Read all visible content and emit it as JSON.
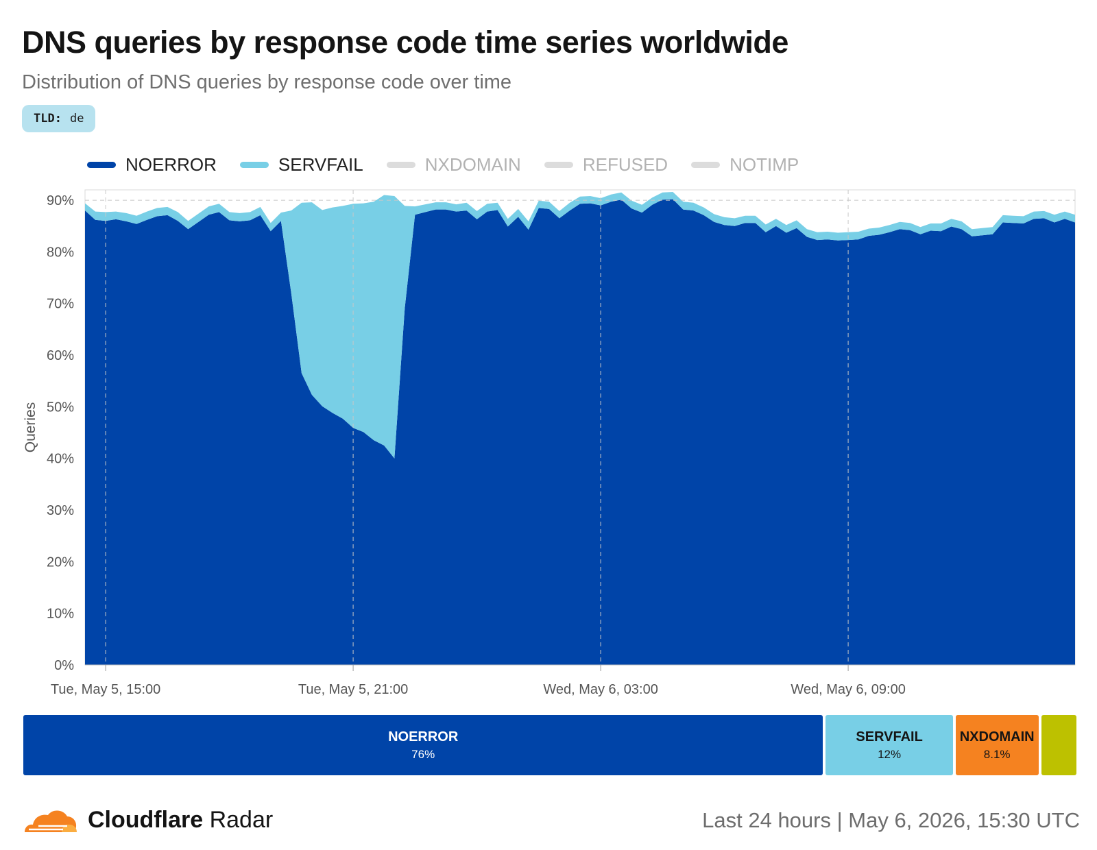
{
  "title": "DNS queries by response code time series worldwide",
  "subtitle": "Distribution of DNS queries by response code over time",
  "filter": {
    "key": "TLD:",
    "value": "de"
  },
  "legend": [
    {
      "label": "NOERROR",
      "color": "#0044a8",
      "active": true
    },
    {
      "label": "SERVFAIL",
      "color": "#78cfe6",
      "active": true
    },
    {
      "label": "NXDOMAIN",
      "color": "#dcdcdc",
      "active": false
    },
    {
      "label": "REFUSED",
      "color": "#dcdcdc",
      "active": false
    },
    {
      "label": "NOTIMP",
      "color": "#dcdcdc",
      "active": false
    }
  ],
  "chart_data": {
    "type": "area",
    "stacked": true,
    "ylabel": "Queries",
    "y_ticks": [
      "0%",
      "10%",
      "20%",
      "30%",
      "40%",
      "50%",
      "60%",
      "70%",
      "80%",
      "90%"
    ],
    "ylim": [
      0,
      92
    ],
    "x_ticks": [
      {
        "x": 1.0,
        "label": "Tue, May 5, 15:00"
      },
      {
        "x": 7.0,
        "label": "Tue, May 5, 21:00"
      },
      {
        "x": 13.0,
        "label": "Wed, May 6, 03:00"
      },
      {
        "x": 19.0,
        "label": "Wed, May 6, 09:00"
      }
    ],
    "xlim": [
      0.5,
      24.5
    ],
    "x": [
      0.5,
      0.75,
      1.0,
      1.25,
      1.5,
      1.75,
      2.0,
      2.25,
      2.5,
      2.75,
      3.0,
      3.25,
      3.5,
      3.75,
      4.0,
      4.25,
      4.5,
      4.75,
      5.0,
      5.25,
      5.5,
      5.75,
      6.0,
      6.25,
      6.5,
      6.75,
      7.0,
      7.25,
      7.5,
      7.75,
      8.0,
      8.25,
      8.5,
      8.75,
      9.0,
      9.25,
      9.5,
      9.75,
      10.0,
      10.25,
      10.5,
      10.75,
      11.0,
      11.25,
      11.5,
      11.75,
      12.0,
      12.25,
      12.5,
      12.75,
      13.0,
      13.25,
      13.5,
      13.75,
      14.0,
      14.25,
      14.5,
      14.75,
      15.0,
      15.25,
      15.5,
      15.75,
      16.0,
      16.25,
      16.5,
      16.75,
      17.0,
      17.25,
      17.5,
      17.75,
      18.0,
      18.25,
      18.5,
      18.75,
      19.0,
      19.25,
      19.5,
      19.75,
      20.0,
      20.25,
      20.5,
      20.75,
      21.0,
      21.25,
      21.5,
      21.75,
      22.0,
      22.25,
      22.5,
      22.75,
      23.0,
      23.25,
      23.5,
      23.75,
      24.0,
      24.25,
      24.5
    ],
    "series": [
      {
        "name": "NOERROR",
        "color": "#0044a8",
        "values": [
          88.0,
          86.2,
          86.0,
          86.3,
          85.9,
          85.4,
          86.2,
          86.9,
          87.1,
          86.0,
          84.4,
          85.8,
          87.2,
          87.7,
          86.1,
          85.9,
          86.1,
          87.1,
          84.0,
          86.0,
          72.0,
          56.5,
          52.3,
          50.1,
          48.8,
          47.7,
          45.9,
          45.1,
          43.5,
          42.5,
          40.0,
          69.0,
          87.2,
          87.7,
          88.2,
          88.2,
          87.8,
          88.0,
          86.3,
          87.8,
          88.1,
          84.9,
          86.8,
          84.3,
          88.5,
          88.3,
          86.5,
          88.0,
          89.3,
          89.4,
          89.0,
          89.7,
          90.1,
          88.4,
          87.6,
          89.1,
          90.1,
          90.2,
          88.2,
          88.0,
          87.1,
          85.8,
          85.2,
          85.0,
          85.6,
          85.6,
          83.8,
          85.0,
          83.7,
          84.6,
          82.9,
          82.3,
          82.4,
          82.2,
          82.3,
          82.4,
          83.1,
          83.3,
          83.8,
          84.4,
          84.2,
          83.4,
          84.1,
          84.0,
          84.9,
          84.4,
          83.0,
          83.2,
          83.4,
          85.7,
          85.6,
          85.5,
          86.4,
          86.5,
          85.7,
          86.4,
          85.7
        ]
      },
      {
        "name": "SERVFAIL",
        "color": "#78cfe6",
        "values": [
          1.4,
          1.6,
          1.7,
          1.5,
          1.6,
          1.6,
          1.6,
          1.6,
          1.6,
          1.7,
          1.6,
          1.6,
          1.6,
          1.6,
          1.6,
          1.6,
          1.6,
          1.6,
          1.6,
          1.6,
          16.0,
          33.0,
          37.3,
          38.0,
          39.8,
          41.2,
          43.4,
          44.3,
          46.2,
          48.5,
          50.8,
          19.9,
          1.6,
          1.5,
          1.4,
          1.4,
          1.4,
          1.5,
          1.6,
          1.5,
          1.4,
          1.5,
          1.5,
          1.6,
          1.4,
          1.4,
          1.4,
          1.5,
          1.4,
          1.4,
          1.4,
          1.4,
          1.4,
          1.5,
          1.5,
          1.4,
          1.4,
          1.4,
          1.5,
          1.5,
          1.5,
          1.5,
          1.5,
          1.5,
          1.4,
          1.4,
          1.5,
          1.4,
          1.5,
          1.5,
          1.5,
          1.5,
          1.5,
          1.5,
          1.5,
          1.5,
          1.4,
          1.4,
          1.4,
          1.4,
          1.4,
          1.4,
          1.4,
          1.5,
          1.5,
          1.5,
          1.4,
          1.4,
          1.4,
          1.4,
          1.4,
          1.4,
          1.4,
          1.4,
          1.5,
          1.4,
          1.5
        ]
      }
    ],
    "summary": [
      {
        "label": "NOERROR",
        "value": "76%",
        "share": 76,
        "color": "#0044a8",
        "text": "#ffffff"
      },
      {
        "label": "SERVFAIL",
        "value": "12%",
        "share": 12.3,
        "color": "#78cfe6",
        "text": "#141414"
      },
      {
        "label": "NXDOMAIN",
        "value": "8.1%",
        "share": 8.1,
        "color": "#f58220",
        "text": "#141414"
      },
      {
        "label": "",
        "value": "",
        "share": 3.6,
        "color": "#bdc100",
        "text": "#141414"
      }
    ]
  },
  "footer": {
    "brand_bold": "Cloudflare",
    "brand_rest": " Radar",
    "meta": "Last 24 hours  |  May 6, 2026, 15:30 UTC"
  }
}
